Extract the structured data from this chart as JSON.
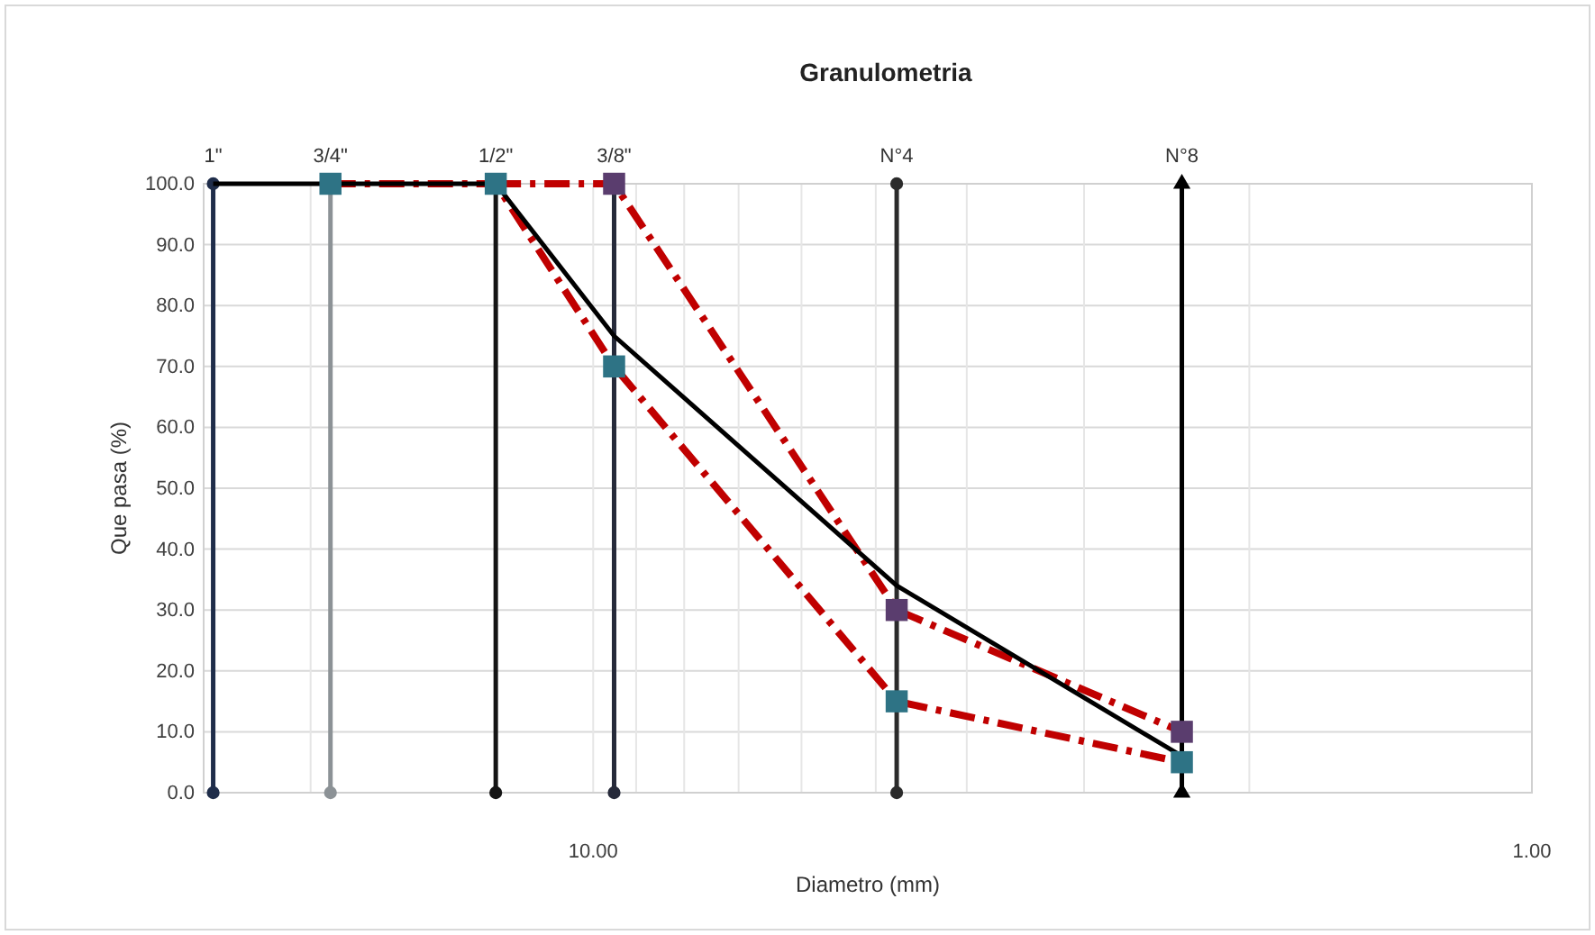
{
  "chart_data": {
    "type": "line",
    "title": "Granulometria",
    "xlabel": "Diametro (mm)",
    "ylabel": "Que pasa (%)",
    "log": "x",
    "grid": true,
    "marker": "none",
    "xlim": [
      26,
      1
    ],
    "ylim": [
      0,
      100
    ],
    "xticks": [
      {
        "value": 20,
        "label": null
      },
      {
        "value": 10,
        "label": "10.00"
      },
      {
        "value": 9,
        "label": null
      },
      {
        "value": 8,
        "label": null
      },
      {
        "value": 7,
        "label": null
      },
      {
        "value": 6,
        "label": null
      },
      {
        "value": 5,
        "label": null
      },
      {
        "value": 4,
        "label": null
      },
      {
        "value": 3,
        "label": null
      },
      {
        "value": 2,
        "label": null
      },
      {
        "value": 1,
        "label": "1.00"
      }
    ],
    "yticks": [
      {
        "value": 0,
        "label": "0.0"
      },
      {
        "value": 10,
        "label": "10.0"
      },
      {
        "value": 20,
        "label": "20.0"
      },
      {
        "value": 30,
        "label": "30.0"
      },
      {
        "value": 40,
        "label": "40.0"
      },
      {
        "value": 50,
        "label": "50.0"
      },
      {
        "value": 60,
        "label": "60.0"
      },
      {
        "value": 70,
        "label": "70.0"
      },
      {
        "value": 80,
        "label": "80.0"
      },
      {
        "value": 90,
        "label": "90.0"
      },
      {
        "value": 100,
        "label": "100.0"
      }
    ],
    "series": [
      {
        "name": "1\"",
        "color": "#1f2d4a",
        "x": [
          25.4,
          25.4
        ],
        "values": [
          0,
          100
        ],
        "marker": "circle"
      },
      {
        "name": "3/4\"",
        "color": "#8c9296",
        "x": [
          19.05,
          19.05
        ],
        "values": [
          0,
          100
        ],
        "marker": "circle"
      },
      {
        "name": "1/2\"",
        "color": "#151515",
        "x": [
          12.7,
          12.7
        ],
        "values": [
          0,
          100
        ],
        "marker": "circle"
      },
      {
        "name": "3/8\"",
        "color": "#262a3a",
        "x": [
          9.5,
          9.5
        ],
        "values": [
          0,
          100
        ],
        "marker": "circle"
      },
      {
        "name": "N°4",
        "color": "#2b2b2b",
        "x": [
          4.75,
          4.75
        ],
        "values": [
          0,
          100
        ],
        "marker": "circle"
      },
      {
        "name": "N°8",
        "color": "#000000",
        "x": [
          2.36,
          2.36
        ],
        "values": [
          0,
          100
        ],
        "marker": "triangle"
      },
      {
        "color": "#c00000",
        "x": [
          12.7,
          9.5,
          4.75,
          2.36
        ],
        "values": [
          100,
          100,
          30,
          10
        ],
        "line_style": "dashed"
      },
      {
        "color": "#c00000",
        "x": [
          19.05,
          12.7,
          9.5,
          4.75,
          2.36
        ],
        "values": [
          100,
          100,
          70,
          15,
          5
        ],
        "line_style": "dashed"
      },
      {
        "color": "#000000",
        "x": [
          25.4,
          19.05,
          12.7,
          9.5,
          4.75,
          2.36
        ],
        "values": [
          100,
          100,
          100,
          75,
          34,
          6
        ],
        "line_style": "solid"
      },
      {
        "type": "scatter",
        "color": "#5a3d6e",
        "x": [
          9.5,
          4.75,
          2.36
        ],
        "values": [
          100,
          30,
          10
        ],
        "marker": "square"
      },
      {
        "type": "scatter",
        "color": "#2e7385",
        "x": [
          19.05,
          12.7,
          9.5,
          4.75,
          2.36
        ],
        "values": [
          100,
          100,
          70,
          15,
          5
        ],
        "marker": "square"
      }
    ]
  }
}
